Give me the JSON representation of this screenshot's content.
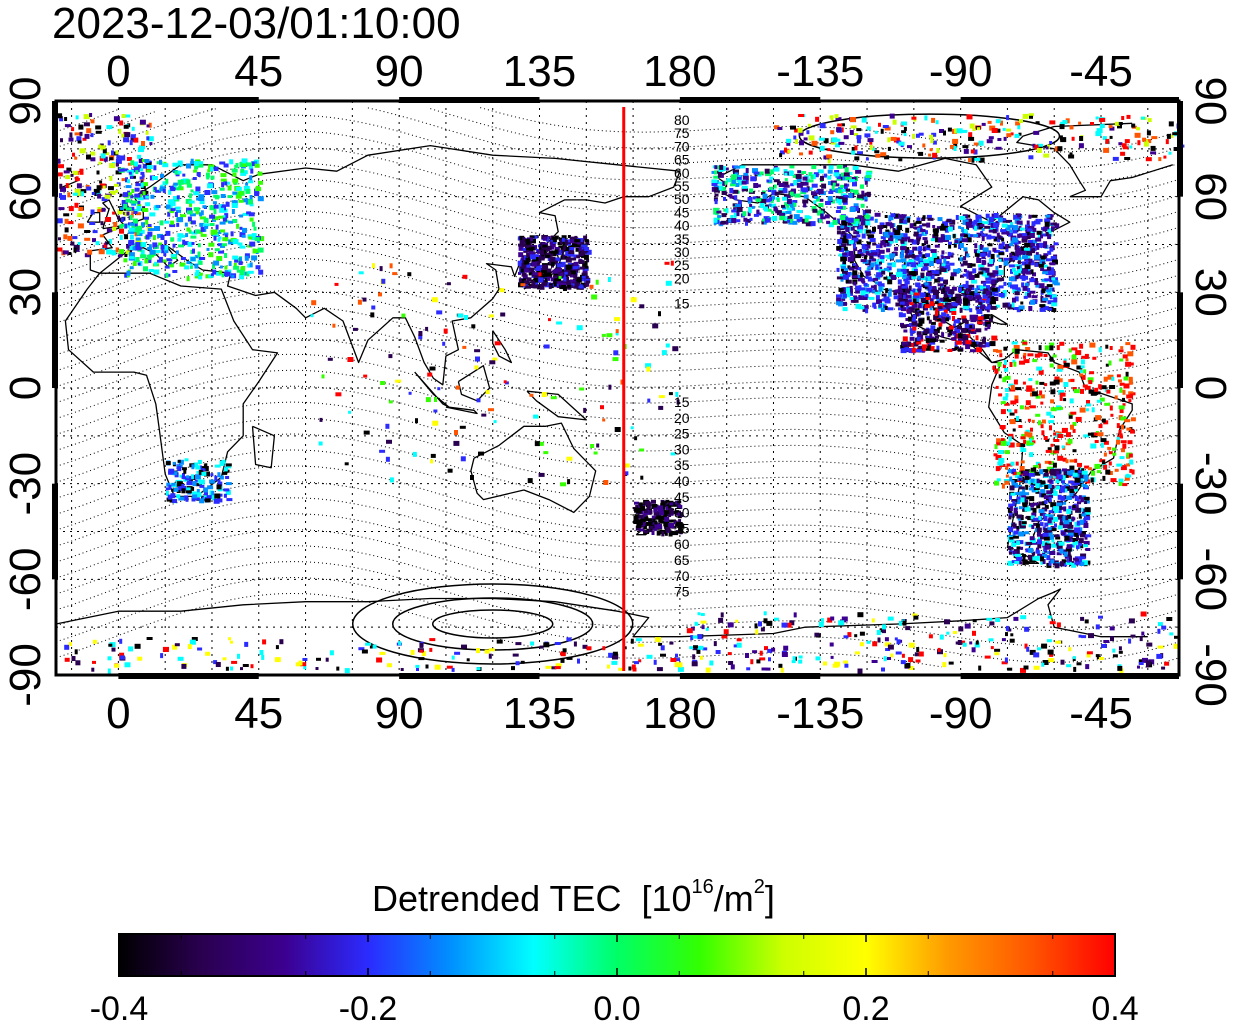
{
  "map": {
    "timestamp": "2023-12-03/01:10:00",
    "top_lon_labels": [
      "0",
      "45",
      "90",
      "135",
      "180",
      "-135",
      "-90",
      "-45"
    ],
    "bottom_lon_labels": [
      "0",
      "45",
      "90",
      "135",
      "180",
      "-135",
      "-90",
      "-45"
    ],
    "left_lat_labels": [
      "90",
      "60",
      "30",
      "0",
      "-30",
      "-60",
      "-90"
    ],
    "right_lat_labels": [
      "90",
      "60",
      "30",
      "0",
      "-30",
      "-60",
      "-90"
    ],
    "terminator_lon": 162,
    "contour_labels_north": [
      "80",
      "75",
      "70",
      "65",
      "60",
      "55",
      "50",
      "45",
      "40",
      "35",
      "30",
      "25",
      "20",
      "15"
    ],
    "contour_labels_south": [
      "15",
      "20",
      "25",
      "30",
      "35",
      "40",
      "45",
      "50",
      "55",
      "60",
      "65",
      "70",
      "75"
    ],
    "colors": {
      "terminator": "#ff0000",
      "border": "#000000"
    }
  },
  "colorbar": {
    "title_main": "Detrended TEC",
    "title_unit_prefix": "[10",
    "title_unit_sup1": "16",
    "title_unit_mid": "/m",
    "title_unit_sup2": "2",
    "title_unit_suffix": "]",
    "ticks": [
      "-0.4",
      "-0.2",
      "0.0",
      "0.2",
      "0.4"
    ],
    "min": -0.4,
    "max": 0.4,
    "colormap": [
      "#000000",
      "#2a0050",
      "#3c0090",
      "#2b2bff",
      "#0090ff",
      "#00ffff",
      "#00ff66",
      "#33ff00",
      "#ccff00",
      "#ffff00",
      "#ff9900",
      "#ff5500",
      "#ff0000"
    ]
  }
}
